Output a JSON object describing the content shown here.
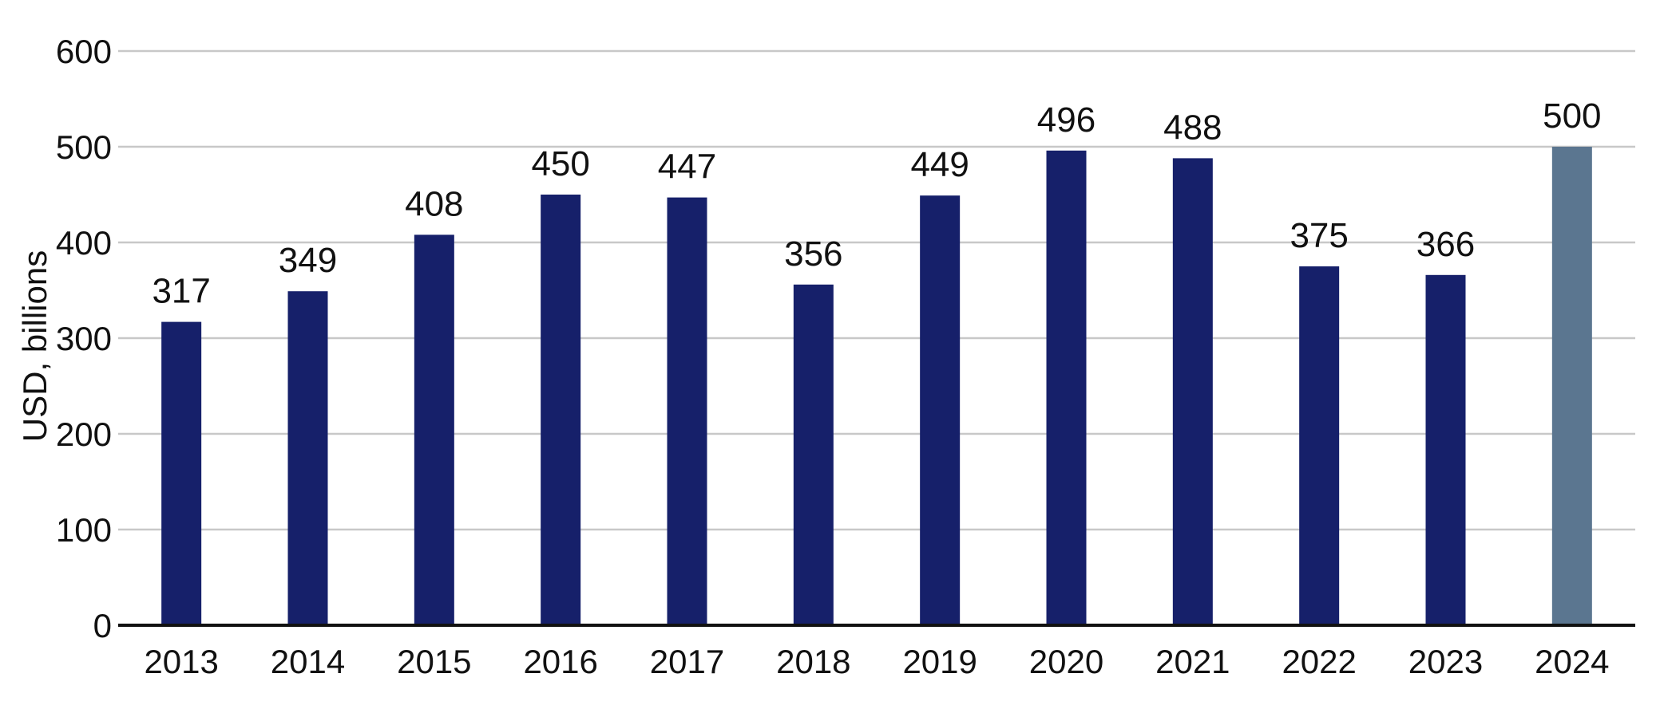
{
  "chart_data": {
    "type": "bar",
    "categories": [
      "2013",
      "2014",
      "2015",
      "2016",
      "2017",
      "2018",
      "2019",
      "2020",
      "2021",
      "2022",
      "2023",
      "2024"
    ],
    "values": [
      317,
      349,
      408,
      450,
      447,
      356,
      449,
      496,
      488,
      375,
      366,
      500
    ],
    "data_labels": [
      "317",
      "349",
      "408",
      "450",
      "447",
      "356",
      "449",
      "496",
      "488",
      "375",
      "366",
      "500"
    ],
    "bar_colors": [
      "#16206a",
      "#16206a",
      "#16206a",
      "#16206a",
      "#16206a",
      "#16206a",
      "#16206a",
      "#16206a",
      "#16206a",
      "#16206a",
      "#16206a",
      "#5b7690"
    ],
    "ylabel": "USD, billions",
    "ylim": [
      0,
      600
    ],
    "yticks": [
      0,
      100,
      200,
      300,
      400,
      500,
      600
    ],
    "grid": true
  }
}
